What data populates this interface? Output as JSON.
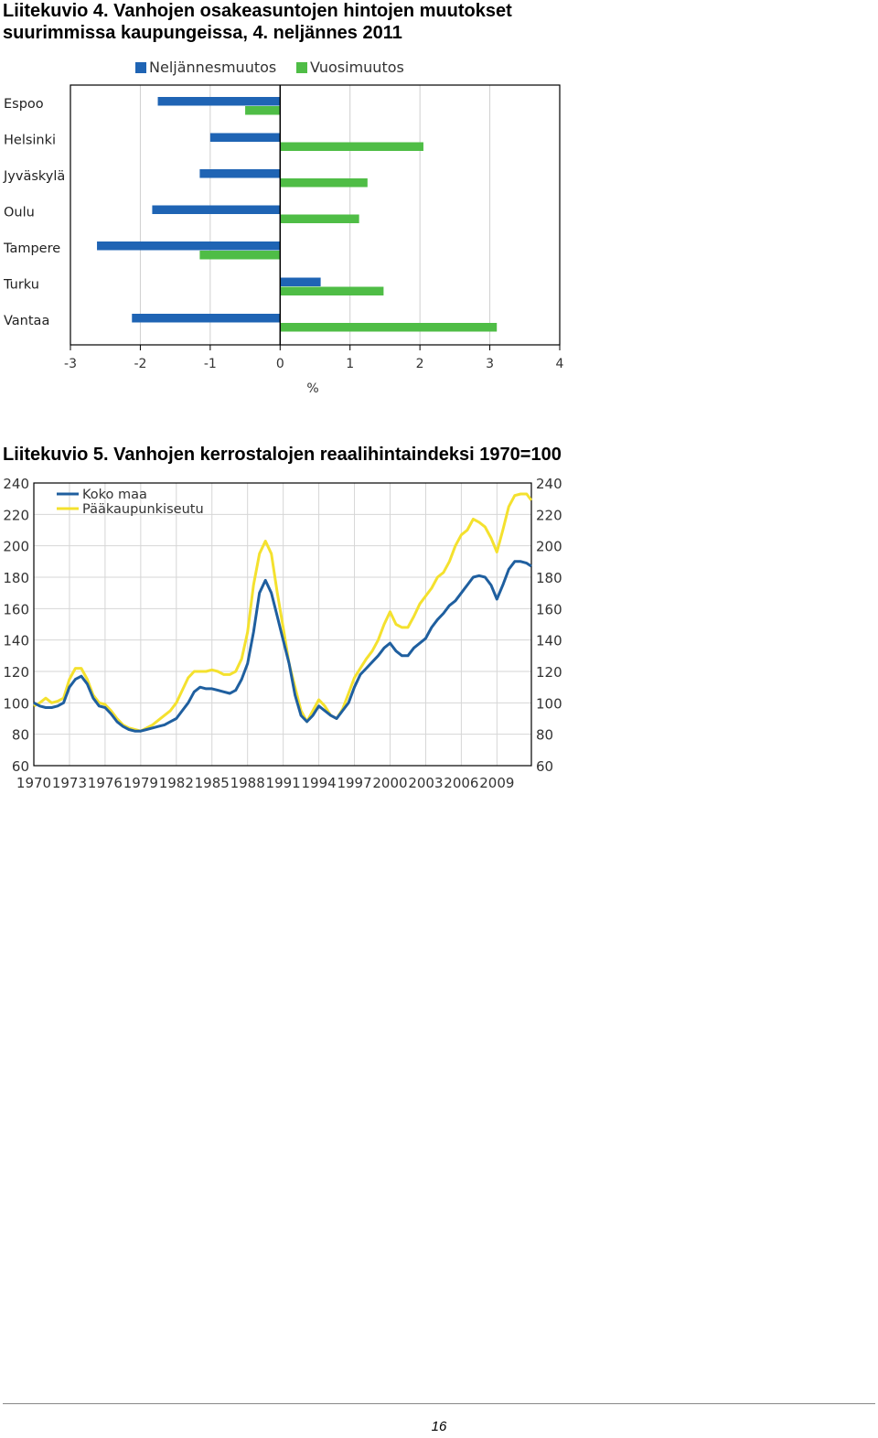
{
  "figure4": {
    "title_line1": "Liitekuvio 4. Vanhojen osakeasuntojen hintojen muutokset",
    "title_line2": "suurimmissa kaupungeissa, 4. neljännes 2011"
  },
  "figure5": {
    "title": "Liitekuvio 5. Vanhojen kerrostalojen reaalihintaindeksi 1970=100"
  },
  "page_number": "16",
  "chart_data": [
    {
      "type": "bar",
      "orientation": "horizontal",
      "title": "",
      "xlabel": "%",
      "ylabel": "",
      "categories": [
        "Espoo",
        "Helsinki",
        "Jyväskylä",
        "Oulu",
        "Tampere",
        "Turku",
        "Vantaa"
      ],
      "series": [
        {
          "name": "Neljännesmuutos",
          "color": "#1f64b4",
          "values": [
            -1.75,
            -1.0,
            -1.15,
            -1.83,
            -2.62,
            0.58,
            -2.12
          ]
        },
        {
          "name": "Vuosimuutos",
          "color": "#4fbd46",
          "values": [
            -0.5,
            2.05,
            1.25,
            1.13,
            -1.15,
            1.48,
            3.1
          ]
        }
      ],
      "xlim": [
        -3,
        4
      ],
      "xticks": [
        "-3",
        "-2",
        "-1",
        "0",
        "1",
        "2",
        "3",
        "4"
      ],
      "grid": true,
      "legend": "top"
    },
    {
      "type": "line",
      "title": "",
      "xlabel": "",
      "ylabel": "",
      "xlim": [
        1970,
        2011.9
      ],
      "ylim": [
        60,
        240
      ],
      "xticks": [
        "1970",
        "1973",
        "1976",
        "1979",
        "1982",
        "1985",
        "1988",
        "1991",
        "1994",
        "1997",
        "2000",
        "2003",
        "2006",
        "2009"
      ],
      "yticks": [
        "60",
        "80",
        "100",
        "120",
        "140",
        "160",
        "180",
        "200",
        "220",
        "240"
      ],
      "grid": true,
      "legend": "top-left",
      "series": [
        {
          "name": "Koko maa",
          "color": "#1f5f9f",
          "x": [
            1970,
            1970.5,
            1971,
            1971.5,
            1972,
            1972.5,
            1973,
            1973.5,
            1974,
            1974.5,
            1975,
            1975.5,
            1976,
            1976.5,
            1977,
            1977.5,
            1978,
            1978.5,
            1979,
            1979.5,
            1980,
            1980.5,
            1981,
            1981.5,
            1982,
            1982.5,
            1983,
            1983.5,
            1984,
            1984.5,
            1985,
            1985.5,
            1986,
            1986.5,
            1987,
            1987.5,
            1988,
            1988.5,
            1989,
            1989.5,
            1990,
            1990.5,
            1991,
            1991.5,
            1992,
            1992.5,
            1993,
            1993.5,
            1994,
            1994.5,
            1995,
            1995.5,
            1996,
            1996.5,
            1997,
            1997.5,
            1998,
            1998.5,
            1999,
            1999.5,
            2000,
            2000.5,
            2001,
            2001.5,
            2002,
            2002.5,
            2003,
            2003.5,
            2004,
            2004.5,
            2005,
            2005.5,
            2006,
            2006.5,
            2007,
            2007.5,
            2008,
            2008.5,
            2009,
            2009.5,
            2010,
            2010.5,
            2011,
            2011.5,
            2011.9
          ],
          "values": [
            100,
            98,
            97,
            97,
            98,
            100,
            110,
            115,
            117,
            112,
            103,
            98,
            97,
            93,
            88,
            85,
            83,
            82,
            82,
            83,
            84,
            85,
            86,
            88,
            90,
            95,
            100,
            107,
            110,
            109,
            109,
            108,
            107,
            106,
            108,
            115,
            125,
            145,
            170,
            178,
            170,
            155,
            140,
            125,
            105,
            92,
            88,
            92,
            98,
            95,
            92,
            90,
            95,
            100,
            110,
            118,
            122,
            126,
            130,
            135,
            138,
            133,
            130,
            130,
            135,
            138,
            141,
            148,
            153,
            157,
            162,
            165,
            170,
            175,
            180,
            181,
            180,
            175,
            166,
            175,
            185,
            190,
            190,
            189,
            187
          ]
        },
        {
          "name": "Pääkaupunkiseutu",
          "color": "#f4e12e",
          "x": [
            1970,
            1970.5,
            1971,
            1971.5,
            1972,
            1972.5,
            1973,
            1973.5,
            1974,
            1974.5,
            1975,
            1975.5,
            1976,
            1976.5,
            1977,
            1977.5,
            1978,
            1978.5,
            1979,
            1979.5,
            1980,
            1980.5,
            1981,
            1981.5,
            1982,
            1982.5,
            1983,
            1983.5,
            1984,
            1984.5,
            1985,
            1985.5,
            1986,
            1986.5,
            1987,
            1987.5,
            1988,
            1988.5,
            1989,
            1989.5,
            1990,
            1990.5,
            1991,
            1991.5,
            1992,
            1992.5,
            1993,
            1993.5,
            1994,
            1994.5,
            1995,
            1995.5,
            1996,
            1996.5,
            1997,
            1997.5,
            1998,
            1998.5,
            1999,
            1999.5,
            2000,
            2000.5,
            2001,
            2001.5,
            2002,
            2002.5,
            2003,
            2003.5,
            2004,
            2004.5,
            2005,
            2005.5,
            2006,
            2006.5,
            2007,
            2007.5,
            2008,
            2008.5,
            2009,
            2009.5,
            2010,
            2010.5,
            2011,
            2011.5,
            2011.9
          ],
          "values": [
            98,
            100,
            103,
            100,
            101,
            103,
            115,
            122,
            122,
            115,
            105,
            100,
            99,
            95,
            90,
            86,
            84,
            83,
            82,
            84,
            86,
            89,
            92,
            95,
            100,
            108,
            116,
            120,
            120,
            120,
            121,
            120,
            118,
            118,
            120,
            128,
            145,
            175,
            195,
            203,
            195,
            170,
            148,
            125,
            110,
            95,
            88,
            95,
            102,
            98,
            92,
            90,
            96,
            106,
            116,
            122,
            128,
            133,
            140,
            150,
            158,
            150,
            148,
            148,
            155,
            163,
            168,
            173,
            180,
            183,
            190,
            200,
            207,
            210,
            217,
            215,
            212,
            205,
            196,
            210,
            225,
            232,
            233,
            233,
            229
          ]
        }
      ]
    }
  ]
}
